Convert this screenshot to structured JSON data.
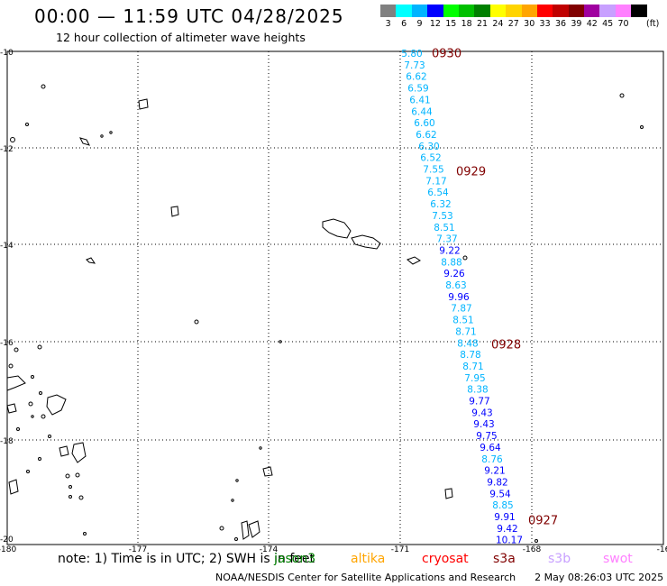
{
  "header": {
    "title": "00:00 — 11:59 UTC 04/28/2025",
    "subtitle": "12 hour collection of altimeter wave heights"
  },
  "legend": {
    "colors": [
      "#808080",
      "#00ffff",
      "#00b4ff",
      "#0000ff",
      "#00ff00",
      "#00c000",
      "#008000",
      "#ffff00",
      "#ffd400",
      "#ffa500",
      "#ff0000",
      "#c00000",
      "#800000",
      "#a000a0",
      "#c8a0ff",
      "#ff80ff",
      "#000000"
    ],
    "labels": [
      "3",
      "6",
      "9",
      "12",
      "15",
      "18",
      "21",
      "24",
      "27",
      "30",
      "33",
      "36",
      "39",
      "42",
      "45",
      "70"
    ],
    "unit": "(ft)"
  },
  "map": {
    "lon_ticks": [
      "-180",
      "-177",
      "-174",
      "-171",
      "-168",
      "-16"
    ],
    "lat_ticks": [
      "-10",
      "-12",
      "-14",
      "-16",
      "-18",
      "-20"
    ],
    "time_labels": [
      "0930",
      "0929",
      "0928",
      "0927"
    ],
    "time_label_color": "#800000",
    "wave_heights": [
      "5.80",
      "7.73",
      "6.62",
      "6.59",
      "6.41",
      "6.44",
      "6.60",
      "6.62",
      "6.30",
      "6.52",
      "7.55",
      "7.17",
      "6.54",
      "6.32",
      "7.53",
      "8.51",
      "7.37",
      "9.22",
      "8.88",
      "9.26",
      "8.63",
      "9.96",
      "7.87",
      "8.51",
      "8.71",
      "8.48",
      "8.78",
      "8.71",
      "7.95",
      "8.38",
      "9.77",
      "9.43",
      "9.43",
      "9.75",
      "9.64",
      "8.76",
      "9.21",
      "9.82",
      "9.54",
      "8.85",
      "9.91",
      "9.42",
      "10.17"
    ]
  },
  "footer": {
    "note": "note:  1) Time is in UTC;  2) SWH is in feet",
    "satellites": [
      {
        "name": "jason3",
        "color": "#008000"
      },
      {
        "name": "altika",
        "color": "#ffa500"
      },
      {
        "name": "cryosat",
        "color": "#ff0000"
      },
      {
        "name": "s3a",
        "color": "#800000"
      },
      {
        "name": "s3b",
        "color": "#c8a0ff"
      },
      {
        "name": "swot",
        "color": "#ff80ff"
      }
    ],
    "credit": "NOAA/NESDIS Center for Satellite Applications and Research",
    "timestamp": "2 May 08:26:03 UTC 2025"
  }
}
